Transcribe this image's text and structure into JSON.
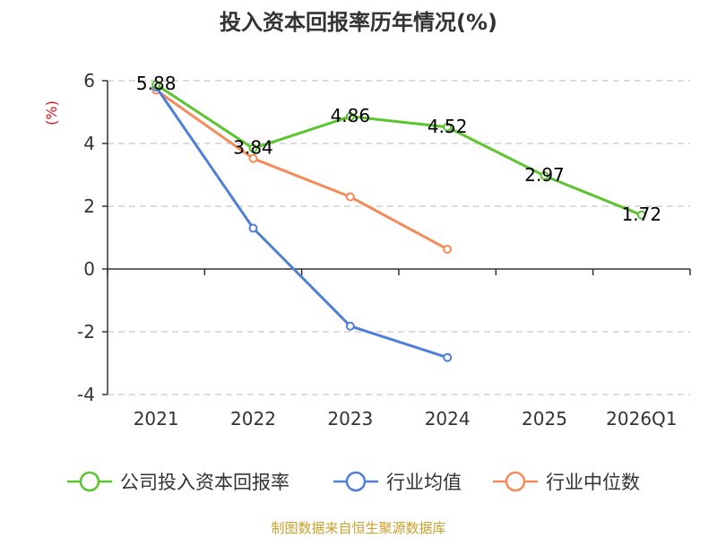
{
  "chart_data": {
    "type": "line",
    "title": "投入资本回报率历年情况(%)",
    "ylabel": "(%)",
    "categories": [
      "2021",
      "2022",
      "2023",
      "2024",
      "2025",
      "2026Q1"
    ],
    "y_ticks": [
      "6",
      "4",
      "2",
      "0",
      "-2",
      "-4"
    ],
    "ylim": [
      -4,
      6
    ],
    "grid": true,
    "legend_position": "bottom",
    "series": [
      {
        "name": "公司投入资本回报率",
        "color": "#5bc42e",
        "values": [
          5.88,
          3.84,
          4.86,
          4.52,
          2.97,
          1.72
        ],
        "labels": [
          "5.88",
          "3.84",
          "4.86",
          "4.52",
          "2.97",
          "1.72"
        ]
      },
      {
        "name": "行业均值",
        "color": "#4f7fd9",
        "values": [
          5.8,
          1.3,
          -1.82,
          -2.82,
          null,
          null
        ]
      },
      {
        "name": "行业中位数",
        "color": "#f58b58",
        "values": [
          5.7,
          3.52,
          2.3,
          0.63,
          null,
          null
        ]
      }
    ],
    "source": "制图数据来自恒生聚源数据库"
  }
}
